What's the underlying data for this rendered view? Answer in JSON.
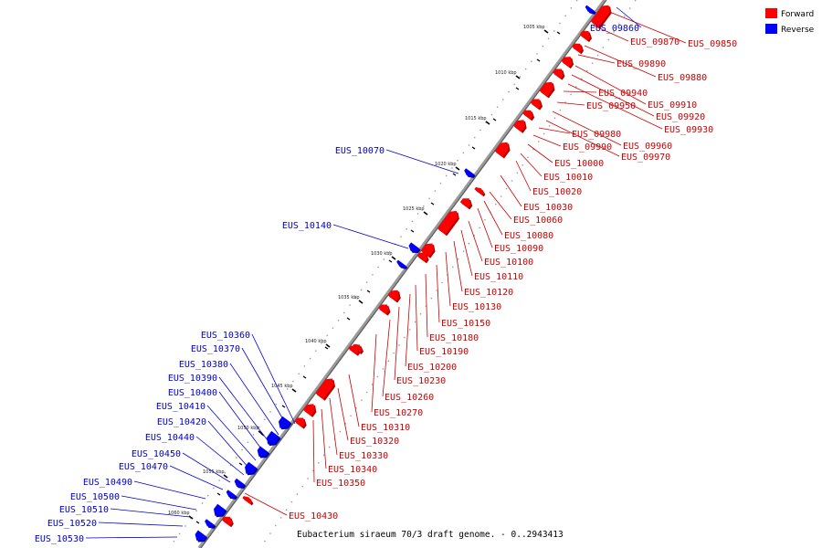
{
  "caption": "Eubacterium siraeum 70/3 draft genome. - 0..2943413",
  "legend": [
    {
      "label": "Forward",
      "color": "#ff0000"
    },
    {
      "label": "Reverse",
      "color": "#0000ff"
    }
  ],
  "ticks": [
    "1005 kbp",
    "1010 kbp",
    "1015 kbp",
    "1020 kbp",
    "1025 kbp",
    "1030 kbp",
    "1035 kbp",
    "1040 kbp",
    "1045 kbp",
    "1050 kbp",
    "1055 kbp",
    "1060 kbp"
  ],
  "forward_labels": [
    "EUS_09850",
    "EUS_09870",
    "EUS_09880",
    "EUS_09890",
    "EUS_09910",
    "EUS_09920",
    "EUS_09930",
    "EUS_09940",
    "EUS_09950",
    "EUS_09960",
    "EUS_09970",
    "EUS_09980",
    "EUS_09990",
    "EUS_10000",
    "EUS_10010",
    "EUS_10020",
    "EUS_10030",
    "EUS_10060",
    "EUS_10080",
    "EUS_10090",
    "EUS_10100",
    "EUS_10110",
    "EUS_10120",
    "EUS_10130",
    "EUS_10150",
    "EUS_10180",
    "EUS_10190",
    "EUS_10200",
    "EUS_10230",
    "EUS_10260",
    "EUS_10270",
    "EUS_10310",
    "EUS_10320",
    "EUS_10330",
    "EUS_10340",
    "EUS_10350",
    "EUS_10430"
  ],
  "reverse_labels": [
    "EUS_09860",
    "EUS_10070",
    "EUS_10140",
    "EUS_10360",
    "EUS_10370",
    "EUS_10380",
    "EUS_10390",
    "EUS_10400",
    "EUS_10410",
    "EUS_10420",
    "EUS_10440",
    "EUS_10450",
    "EUS_10470",
    "EUS_10490",
    "EUS_10500",
    "EUS_10510",
    "EUS_10520",
    "EUS_10530"
  ]
}
